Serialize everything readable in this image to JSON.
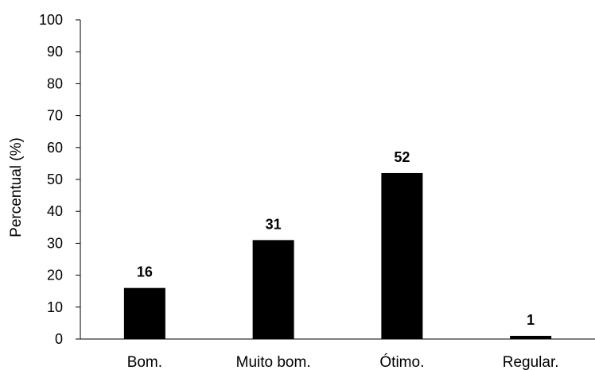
{
  "chart_data": {
    "type": "bar",
    "categories": [
      "Bom.",
      "Muito bom.",
      "Ótimo.",
      "Regular."
    ],
    "values": [
      16,
      31,
      52,
      1
    ],
    "data_labels": [
      "16",
      "31",
      "52",
      "1"
    ],
    "xlabel": "",
    "ylabel": "Percentual (%)",
    "ylim": [
      0,
      100
    ],
    "yticks": [
      0,
      10,
      20,
      30,
      40,
      50,
      60,
      70,
      80,
      90,
      100
    ],
    "grid": false,
    "bar_color": "#000000"
  }
}
